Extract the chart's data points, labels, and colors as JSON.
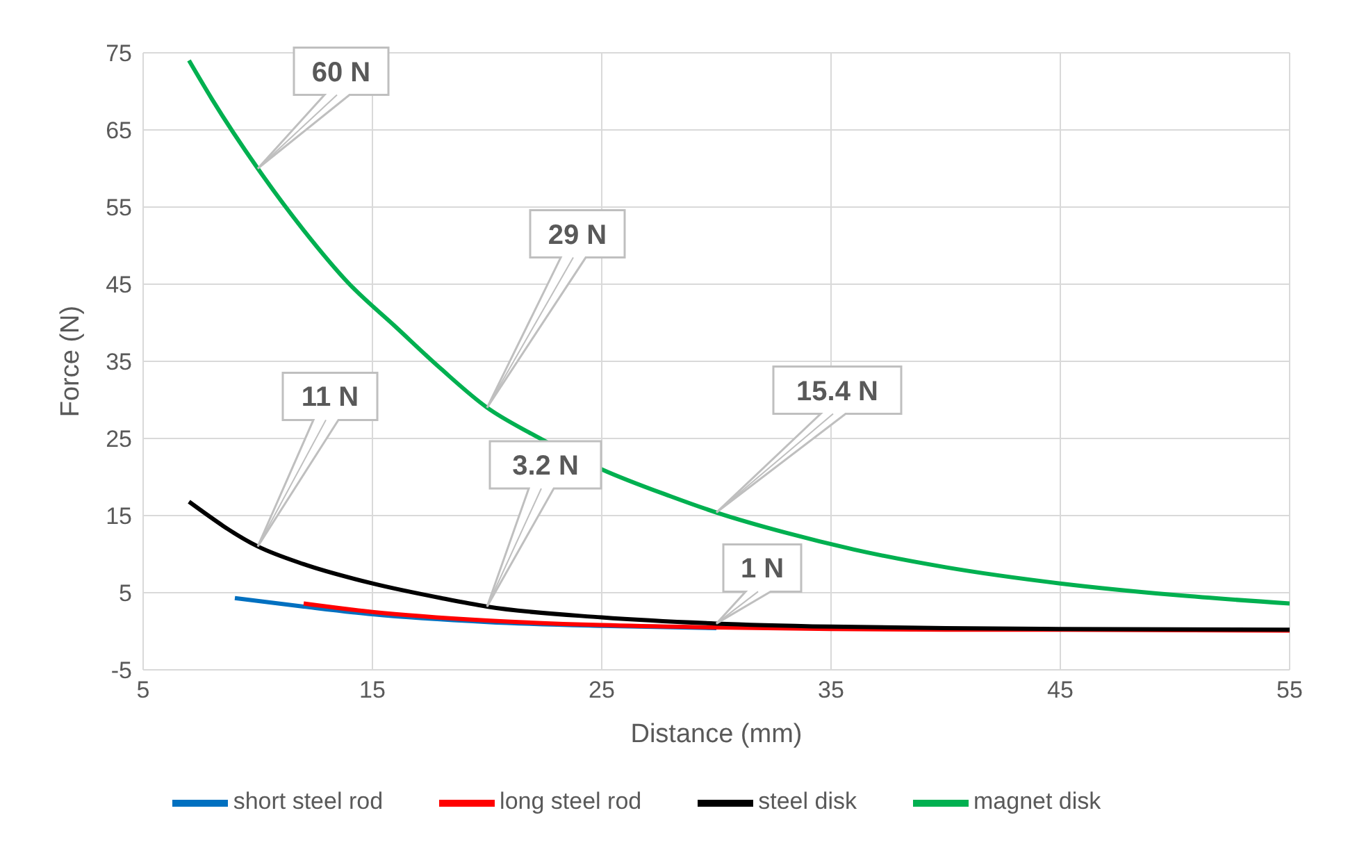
{
  "chart_data": {
    "type": "line",
    "xlabel": "Distance (mm)",
    "ylabel": "Force (N)",
    "xlim": [
      5,
      55
    ],
    "xticks": [
      5,
      15,
      25,
      35,
      45,
      55
    ],
    "ylim": [
      -5,
      75
    ],
    "yticks": [
      -5,
      5,
      15,
      25,
      35,
      45,
      55,
      65,
      75
    ],
    "grid": true,
    "legend": "bottom",
    "marker": "none",
    "line_style": "solid",
    "series": [
      {
        "name": "short steel rod",
        "color": "#0070c0",
        "x": [
          9,
          12,
          15,
          20,
          25,
          30
        ],
        "values": [
          4.3,
          3.2,
          2.2,
          1.2,
          0.7,
          0.4
        ]
      },
      {
        "name": "long steel rod",
        "color": "#ff0000",
        "x": [
          12,
          15,
          20,
          25,
          30,
          35,
          40,
          45,
          55
        ],
        "values": [
          3.6,
          2.5,
          1.4,
          0.8,
          0.5,
          0.3,
          0.2,
          0.2,
          0.1
        ]
      },
      {
        "name": "steel disk",
        "color": "#000000",
        "x": [
          7,
          10,
          12,
          15,
          18,
          20,
          25,
          30,
          35,
          40,
          45,
          55
        ],
        "values": [
          16.8,
          11,
          8.7,
          6.2,
          4.3,
          3.2,
          1.8,
          1,
          0.6,
          0.4,
          0.3,
          0.2
        ]
      },
      {
        "name": "magnet disk",
        "color": "#00b050",
        "x": [
          7,
          8,
          10,
          12,
          14,
          16,
          18,
          20,
          22,
          25,
          28,
          30,
          33,
          36,
          40,
          45,
          50,
          55
        ],
        "values": [
          74,
          69,
          60,
          52,
          45,
          39.5,
          34,
          29,
          25.5,
          21,
          17.5,
          15.4,
          12.8,
          10.6,
          8.3,
          6.2,
          4.7,
          3.6
        ]
      }
    ],
    "annotations": [
      {
        "text": "60 N",
        "x": 10,
        "y": 60
      },
      {
        "text": "29 N",
        "x": 20,
        "y": 29
      },
      {
        "text": "15.4 N",
        "x": 30,
        "y": 15.4
      },
      {
        "text": "11 N",
        "x": 10,
        "y": 11
      },
      {
        "text": "3.2 N",
        "x": 20,
        "y": 3.2
      },
      {
        "text": "1 N",
        "x": 30,
        "y": 1
      }
    ]
  }
}
